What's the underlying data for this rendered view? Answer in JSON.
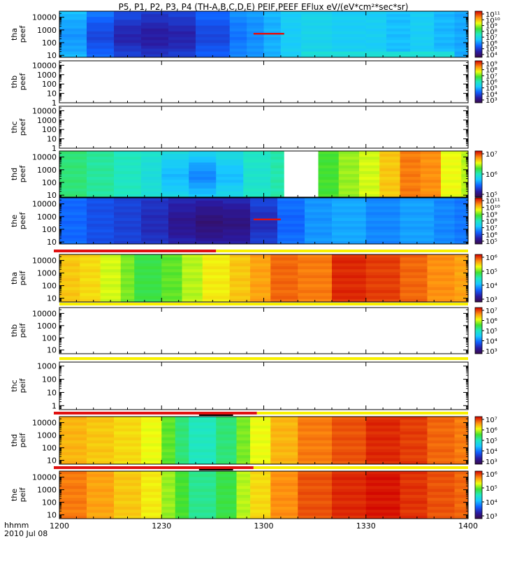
{
  "chart_data": {
    "type": "heatmap",
    "title": "P5, P1, P2, P3, P4 (TH-A,B,C,D,E) PEIF,PEEF EFlux eV/(eV*cm²*sec*sr)",
    "x_axis": {
      "unit_label": "hhmm",
      "date_label": "2010 Jul 08",
      "range": [
        "1200",
        "1400"
      ],
      "ticks": [
        "1200",
        "1230",
        "1300",
        "1330",
        "1400"
      ]
    },
    "panels": [
      {
        "ylabel": [
          "tha",
          "peef"
        ],
        "yticks": [
          "10",
          "100",
          "1000",
          "10000"
        ],
        "ylim": [
          7,
          30000
        ],
        "log_y": true,
        "has_data": true,
        "colorbar": {
          "exp_min": 4,
          "exp_max": 11,
          "labels": [
            "10⁴",
            "10⁵",
            "10⁶",
            "10⁷",
            "10⁸",
            "10⁹",
            "10¹⁰",
            "10¹¹"
          ]
        },
        "background_level": 0.38,
        "time_blocks_min": [
          [
            0,
            8,
            0.38
          ],
          [
            8,
            16,
            0.3
          ],
          [
            16,
            24,
            0.24
          ],
          [
            24,
            32,
            0.2
          ],
          [
            32,
            40,
            0.22
          ],
          [
            40,
            50,
            0.28
          ],
          [
            50,
            55,
            0.32
          ],
          [
            55,
            60,
            0.33
          ],
          [
            60,
            65,
            0.36
          ],
          [
            65,
            71,
            0.4
          ],
          [
            71,
            80,
            0.42
          ],
          [
            80,
            90,
            0.4
          ],
          [
            90,
            96,
            0.4
          ],
          [
            96,
            103,
            0.37
          ],
          [
            103,
            110,
            0.4
          ],
          [
            110,
            116,
            0.36
          ],
          [
            116,
            120,
            0.34
          ]
        ],
        "dark_spot": {
          "center_min": 28,
          "width_min": 40,
          "level": 0.12
        },
        "low_energy_band": {
          "start_min": 72,
          "end_min": 118,
          "level": 0.46
        },
        "marker": {
          "start_min": 57,
          "end_min": 66,
          "energy": 500,
          "color": "#e01010"
        }
      },
      {
        "ylabel": [
          "thb",
          "peef"
        ],
        "yticks": [
          "1",
          "10",
          "100",
          "1000",
          "10000"
        ],
        "ylim": [
          1,
          30000
        ],
        "log_y": true,
        "has_data": false,
        "colorbar": {
          "exp_min": 3,
          "exp_max": 9,
          "labels": [
            "10³",
            "10⁴",
            "10⁵",
            "10⁶",
            "10⁷",
            "10⁸",
            "10⁹"
          ]
        }
      },
      {
        "ylabel": [
          "thc",
          "peef"
        ],
        "yticks": [
          "1",
          "10",
          "100",
          "1000",
          "10000"
        ],
        "ylim": [
          1,
          30000
        ],
        "log_y": true,
        "has_data": false
      },
      {
        "ylabel": [
          "thd",
          "peef"
        ],
        "yticks": [
          "10",
          "100",
          "1000",
          "10000"
        ],
        "ylim": [
          7,
          30000
        ],
        "log_y": true,
        "has_data": true,
        "colorbar": {
          "exp_min": 4.5,
          "exp_max": 7.8,
          "labels": [
            "10⁵",
            "10⁶",
            "10⁷"
          ]
        },
        "time_blocks_min": [
          [
            0,
            8,
            0.56
          ],
          [
            8,
            16,
            0.53
          ],
          [
            16,
            24,
            0.5
          ],
          [
            24,
            30,
            0.48
          ],
          [
            30,
            38,
            0.46
          ],
          [
            38,
            46,
            0.44
          ],
          [
            46,
            54,
            0.47
          ],
          [
            54,
            62,
            0.5
          ],
          [
            62,
            66,
            0.52
          ],
          [
            76,
            82,
            0.62
          ],
          [
            82,
            88,
            0.68
          ],
          [
            88,
            94,
            0.72
          ],
          [
            94,
            100,
            0.8
          ],
          [
            100,
            106,
            0.88
          ],
          [
            106,
            112,
            0.86
          ],
          [
            112,
            118,
            0.74
          ],
          [
            118,
            120,
            0.7
          ]
        ],
        "dark_spot": {
          "center_min": 42,
          "width_min": 22,
          "level": 0.3
        },
        "gap": {
          "start_min": 66,
          "end_min": 76
        }
      },
      {
        "ylabel": [
          "the",
          "peef"
        ],
        "yticks": [
          "10",
          "100",
          "1000",
          "10000"
        ],
        "ylim": [
          7,
          30000
        ],
        "log_y": true,
        "has_data": true,
        "colorbar": {
          "exp_min": 4.7,
          "exp_max": 11,
          "labels": [
            "10⁵",
            "10⁶",
            "10⁷",
            "10⁸",
            "10⁹",
            "10¹⁰",
            "10¹¹"
          ]
        },
        "time_blocks_min": [
          [
            0,
            8,
            0.26
          ],
          [
            8,
            16,
            0.22
          ],
          [
            16,
            24,
            0.2
          ],
          [
            24,
            32,
            0.18
          ],
          [
            32,
            40,
            0.16
          ],
          [
            40,
            48,
            0.15
          ],
          [
            48,
            56,
            0.16
          ],
          [
            56,
            64,
            0.22
          ],
          [
            64,
            72,
            0.28
          ],
          [
            72,
            80,
            0.32
          ],
          [
            80,
            90,
            0.34
          ],
          [
            90,
            100,
            0.3
          ],
          [
            100,
            110,
            0.33
          ],
          [
            110,
            116,
            0.3
          ],
          [
            116,
            120,
            0.28
          ]
        ],
        "dark_spot": {
          "center_min": 46,
          "width_min": 30,
          "level": 0.06
        },
        "marker": {
          "start_min": 57,
          "end_min": 65,
          "energy": 600,
          "color": "#e01010"
        }
      },
      {
        "ylabel": [
          "tha",
          "peif"
        ],
        "yticks": [
          "10",
          "100",
          "1000",
          "10000"
        ],
        "ylim": [
          5,
          30000
        ],
        "log_y": true,
        "has_data": true,
        "colorbar": {
          "exp_min": 2.8,
          "exp_max": 6.5,
          "labels": [
            "10³",
            "10⁴",
            "10⁵",
            "10⁶"
          ]
        },
        "time_blocks_min": [
          [
            0,
            6,
            0.8
          ],
          [
            6,
            12,
            0.78
          ],
          [
            12,
            18,
            0.72
          ],
          [
            18,
            22,
            0.66
          ],
          [
            22,
            30,
            0.6
          ],
          [
            30,
            36,
            0.64
          ],
          [
            36,
            42,
            0.7
          ],
          [
            42,
            50,
            0.76
          ],
          [
            50,
            56,
            0.8
          ],
          [
            56,
            62,
            0.84
          ],
          [
            62,
            70,
            0.9
          ],
          [
            70,
            80,
            0.88
          ],
          [
            80,
            90,
            0.96
          ],
          [
            90,
            100,
            0.94
          ],
          [
            100,
            108,
            0.9
          ],
          [
            108,
            116,
            0.86
          ],
          [
            116,
            120,
            0.84
          ]
        ],
        "mode_bar": {
          "split_min": 46
        }
      },
      {
        "ylabel": [
          "thb",
          "peif"
        ],
        "yticks": [
          "10",
          "100",
          "1000",
          "10000"
        ],
        "ylim": [
          5,
          30000
        ],
        "log_y": true,
        "has_data": false,
        "colorbar": {
          "exp_min": 2.8,
          "exp_max": 7.2,
          "labels": [
            "10³",
            "10⁴",
            "10⁵",
            "10⁶",
            "10⁷"
          ]
        },
        "mode_bar": {
          "split_min": 0
        }
      },
      {
        "ylabel": [
          "thc",
          "peif"
        ],
        "yticks": [
          "1",
          "10",
          "100",
          "1000"
        ],
        "ylim": [
          0.5,
          2000
        ],
        "log_y": true,
        "has_data": false,
        "mode_bar": {
          "split_min": 0
        }
      },
      {
        "ylabel": [
          "thd",
          "peif"
        ],
        "yticks": [
          "10",
          "100",
          "1000",
          "10000"
        ],
        "ylim": [
          5,
          30000
        ],
        "log_y": true,
        "has_data": true,
        "colorbar": {
          "exp_min": 2.8,
          "exp_max": 7.2,
          "labels": [
            "10³",
            "10⁴",
            "10⁵",
            "10⁶",
            "10⁷"
          ]
        },
        "time_blocks_min": [
          [
            0,
            8,
            0.82
          ],
          [
            8,
            16,
            0.8
          ],
          [
            16,
            24,
            0.78
          ],
          [
            24,
            30,
            0.74
          ],
          [
            30,
            34,
            0.64
          ],
          [
            34,
            38,
            0.56
          ],
          [
            38,
            46,
            0.5
          ],
          [
            46,
            52,
            0.56
          ],
          [
            52,
            56,
            0.66
          ],
          [
            56,
            62,
            0.74
          ],
          [
            62,
            70,
            0.82
          ],
          [
            70,
            80,
            0.88
          ],
          [
            80,
            90,
            0.92
          ],
          [
            90,
            100,
            0.96
          ],
          [
            100,
            108,
            0.94
          ],
          [
            108,
            116,
            0.9
          ],
          [
            116,
            120,
            0.88
          ]
        ],
        "mode_bar": {
          "split_min": 58,
          "black_start_min": 41,
          "black_end_min": 51
        }
      },
      {
        "ylabel": [
          "the",
          "peif"
        ],
        "yticks": [
          "10",
          "100",
          "1000",
          "10000"
        ],
        "ylim": [
          5,
          30000
        ],
        "log_y": true,
        "has_data": true,
        "colorbar": {
          "exp_min": 2.8,
          "exp_max": 6.5,
          "labels": [
            "10³",
            "10⁴",
            "10⁵",
            "10⁶"
          ]
        },
        "time_blocks_min": [
          [
            0,
            8,
            0.88
          ],
          [
            8,
            16,
            0.84
          ],
          [
            16,
            24,
            0.8
          ],
          [
            24,
            30,
            0.76
          ],
          [
            30,
            34,
            0.68
          ],
          [
            34,
            38,
            0.62
          ],
          [
            38,
            46,
            0.54
          ],
          [
            46,
            52,
            0.6
          ],
          [
            52,
            56,
            0.7
          ],
          [
            56,
            62,
            0.78
          ],
          [
            62,
            70,
            0.86
          ],
          [
            70,
            80,
            0.92
          ],
          [
            80,
            90,
            0.96
          ],
          [
            90,
            100,
            0.98
          ],
          [
            100,
            108,
            0.95
          ],
          [
            108,
            116,
            0.92
          ],
          [
            116,
            120,
            0.9
          ]
        ],
        "mode_bar": {
          "split_min": 57,
          "black_start_min": 41,
          "black_end_min": 51
        }
      }
    ]
  }
}
